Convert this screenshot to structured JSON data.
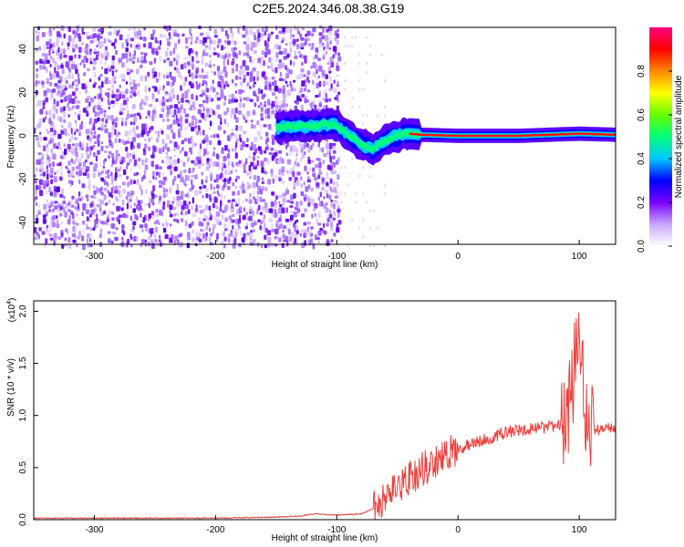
{
  "chart_data": [
    {
      "type": "heatmap",
      "title": "C2E5.2024.346.08.38.G19",
      "xlabel": "Height of straight line (km)",
      "ylabel": "Frequency (Hz)",
      "xlim": [
        -350,
        130
      ],
      "ylim": [
        -50,
        50
      ],
      "xticks": [
        -300,
        -200,
        -100,
        0,
        100
      ],
      "yticks": [
        -40,
        -20,
        0,
        20,
        40
      ],
      "colorbar": {
        "label": "Normalized spectral amplitude",
        "range": [
          0,
          1
        ],
        "ticks": [
          0.0,
          0.2,
          0.4,
          0.6,
          0.8
        ],
        "colors": [
          "#ffffff",
          "#c9a8ff",
          "#7a00ff",
          "#0000ff",
          "#00c8ff",
          "#00ff7a",
          "#66ff00",
          "#ffff00",
          "#ff8800",
          "#ff0000",
          "#ff0080"
        ]
      },
      "ridge": [
        {
          "x": -145,
          "y": 4
        },
        {
          "x": -100,
          "y": 5
        },
        {
          "x": -90,
          "y": 0
        },
        {
          "x": -80,
          "y": -4
        },
        {
          "x": -70,
          "y": -6
        },
        {
          "x": -60,
          "y": -2
        },
        {
          "x": -50,
          "y": 0
        },
        {
          "x": -40,
          "y": 1
        },
        {
          "x": -30,
          "y": 0.5
        },
        {
          "x": 0,
          "y": 0
        },
        {
          "x": 50,
          "y": 0
        },
        {
          "x": 100,
          "y": 1
        },
        {
          "x": 130,
          "y": 0.5
        }
      ]
    },
    {
      "type": "line",
      "xlabel": "Height of straight line (km)",
      "ylabel": "SNR (10 * v/v)",
      "yscale_label": "(x10",
      "yscale_exp": "4",
      "xlim": [
        -350,
        130
      ],
      "ylim": [
        0,
        2.1
      ],
      "xticks": [
        -300,
        -200,
        -100,
        0,
        100
      ],
      "yticks": [
        "0.0",
        "0.5",
        "1.0",
        "1.5",
        "2.0"
      ],
      "color": "#e8403a",
      "series": [
        {
          "x": [
            -350,
            -300,
            -250,
            -200,
            -150,
            -130,
            -120,
            -100,
            -80,
            -70,
            -60,
            -50,
            -40,
            -30,
            -20,
            -10,
            0,
            10,
            20,
            30,
            40,
            50,
            60,
            70,
            80,
            90,
            95,
            100,
            105,
            110,
            115,
            120,
            130
          ],
          "y": [
            0.01,
            0.01,
            0.01,
            0.01,
            0.02,
            0.03,
            0.05,
            0.04,
            0.05,
            0.1,
            0.18,
            0.3,
            0.4,
            0.48,
            0.55,
            0.62,
            0.68,
            0.72,
            0.76,
            0.8,
            0.84,
            0.86,
            0.87,
            0.88,
            0.9,
            0.95,
            1.4,
            1.95,
            1.1,
            0.9,
            0.85,
            0.88,
            0.88
          ]
        }
      ]
    }
  ]
}
